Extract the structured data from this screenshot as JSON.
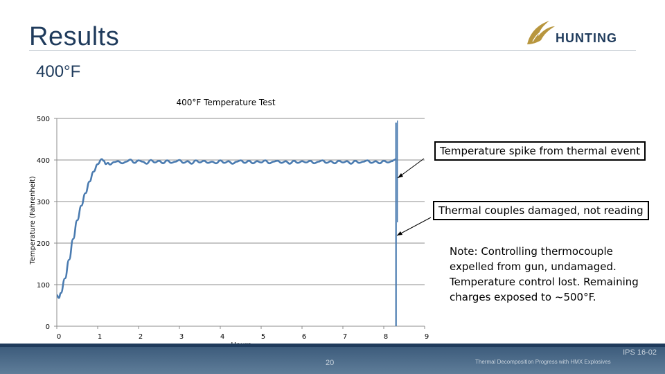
{
  "slide": {
    "title": "Results",
    "subtitle": "400°F",
    "logo_text": "HUNTING",
    "page_number": "20",
    "doc_id": "IPS 16-02",
    "footer_text": "Thermal Decomposition Progress with HMX Explosives"
  },
  "annotations": {
    "spike": "Temperature spike from thermal event",
    "damaged": "Thermal couples damaged, not reading",
    "note": "Note: Controlling thermocouple expelled from gun, undamaged. Temperature control lost. Remaining charges exposed to ~500°F."
  },
  "colors": {
    "series": "#4a7bb0",
    "brand": "#1f3b5c",
    "logo_gold": "#b8963e"
  },
  "chart_data": {
    "type": "line",
    "title": "400°F Temperature Test",
    "xlabel": "Hours",
    "ylabel": "Temperature (Fahrenheit)",
    "xlim": [
      0,
      9
    ],
    "ylim": [
      0,
      500
    ],
    "xticks": [
      "0",
      "1",
      "2",
      "3",
      "4",
      "5",
      "6",
      "7",
      "8",
      "9"
    ],
    "yticks": [
      "0",
      "100",
      "200",
      "300",
      "400",
      "500"
    ],
    "grid": "horizontal",
    "series": [
      {
        "x": [
          0.0,
          0.05,
          0.1,
          0.2,
          0.3,
          0.4,
          0.5,
          0.6,
          0.7,
          0.8,
          0.9,
          1.0,
          1.1,
          1.15,
          1.2,
          1.25,
          1.3,
          1.4,
          1.5,
          1.6,
          1.7,
          1.8,
          1.9,
          2.0,
          2.1,
          2.2,
          2.3,
          2.4,
          2.5,
          2.6,
          2.7,
          2.8,
          2.9,
          3.0,
          3.1,
          3.2,
          3.3,
          3.4,
          3.5,
          3.6,
          3.7,
          3.8,
          3.9,
          4.0,
          4.1,
          4.2,
          4.3,
          4.4,
          4.5,
          4.6,
          4.7,
          4.8,
          4.9,
          5.0,
          5.1,
          5.2,
          5.3,
          5.4,
          5.5,
          5.6,
          5.7,
          5.8,
          5.9,
          6.0,
          6.1,
          6.2,
          6.3,
          6.4,
          6.5,
          6.6,
          6.7,
          6.8,
          6.9,
          7.0,
          7.1,
          7.2,
          7.3,
          7.4,
          7.5,
          7.6,
          7.7,
          7.8,
          7.9,
          8.0,
          8.1,
          8.2,
          8.25,
          8.3
        ],
        "values": [
          75,
          68,
          80,
          115,
          160,
          210,
          255,
          290,
          320,
          348,
          372,
          390,
          402,
          398,
          390,
          393,
          389,
          395,
          397,
          392,
          396,
          401,
          393,
          399,
          396,
          391,
          400,
          394,
          398,
          392,
          399,
          393,
          396,
          400,
          393,
          397,
          391,
          399,
          394,
          398,
          393,
          396,
          392,
          399,
          393,
          397,
          391,
          396,
          399,
          393,
          398,
          392,
          397,
          394,
          399,
          392,
          396,
          398,
          393,
          397,
          391,
          398,
          393,
          397,
          394,
          398,
          392,
          396,
          399,
          393,
          397,
          392,
          398,
          394,
          397,
          391,
          398,
          393,
          396,
          399,
          393,
          397,
          392,
          398,
          394,
          397,
          400,
          402
        ]
      }
    ]
  }
}
